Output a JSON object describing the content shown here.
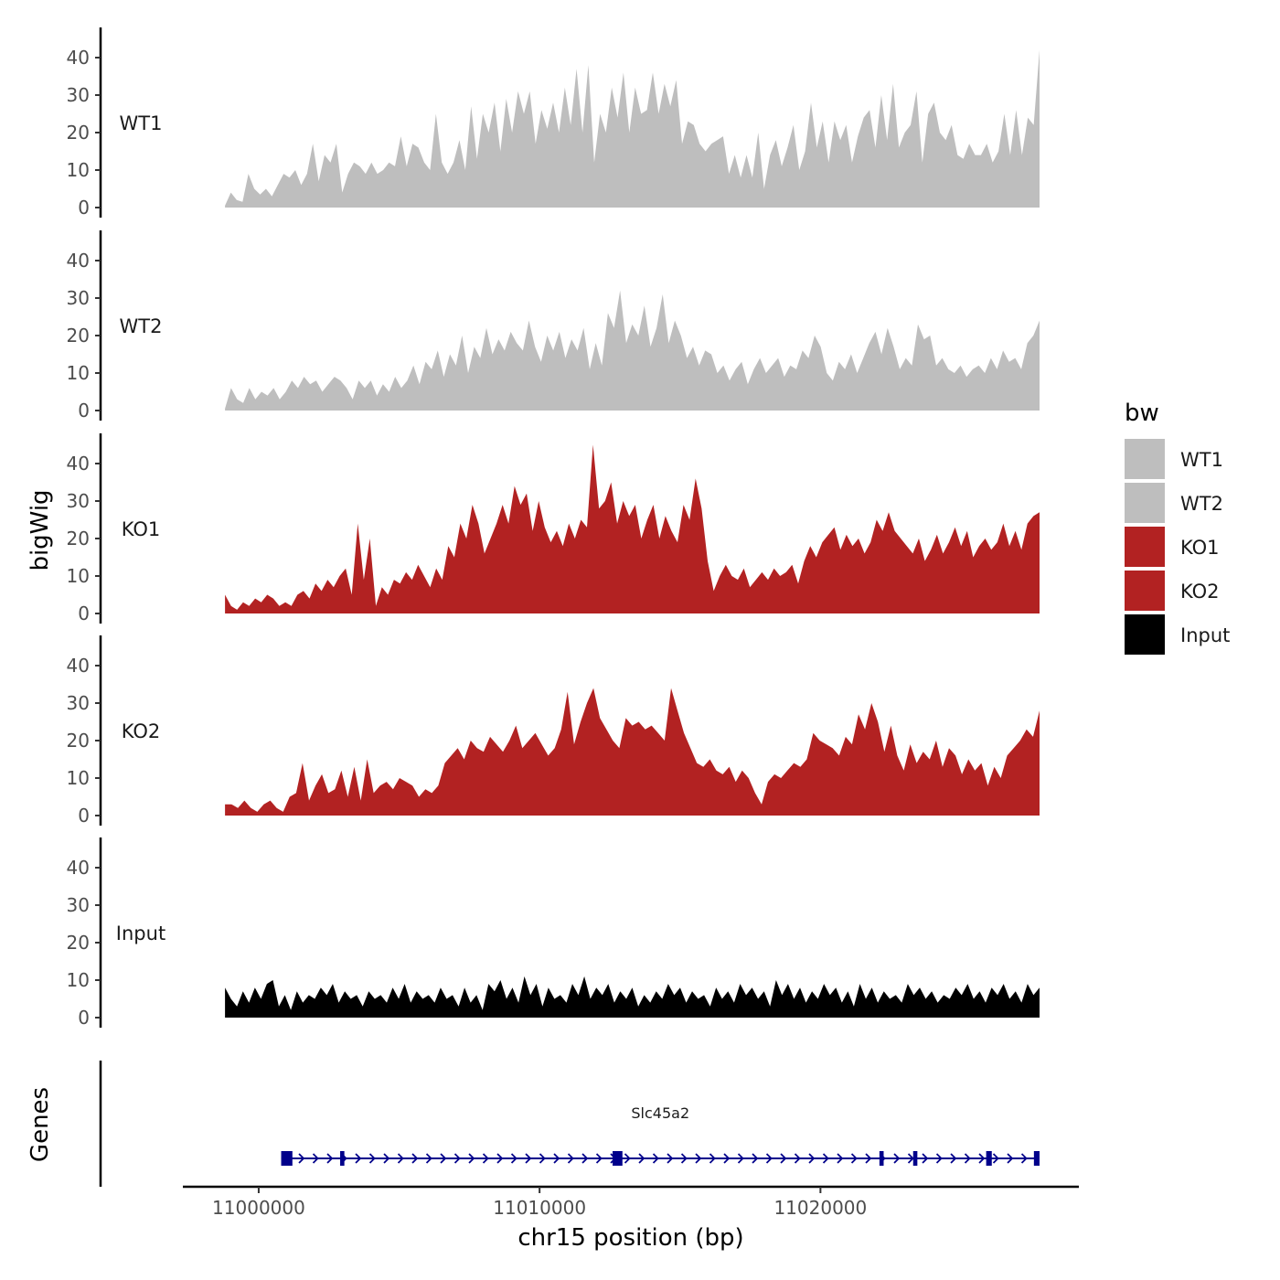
{
  "chart_data": {
    "type": "area",
    "chromosome_axis": {
      "label": "chr15 position (bp)",
      "ticks": [
        11000000,
        11010000,
        11020000
      ],
      "tick_labels": [
        "11000000",
        "11010000",
        "11020000"
      ],
      "xlim": [
        10997300,
        11029200
      ]
    },
    "y_axis": {
      "label": "bigWig",
      "ylim": [
        0,
        45
      ],
      "ticks": [
        0,
        10,
        20,
        30,
        40
      ],
      "tick_labels": [
        "0",
        "10",
        "20",
        "30",
        "40"
      ]
    },
    "legend": {
      "title": "bw",
      "position": "right",
      "entries": [
        {
          "label": "WT1",
          "color": "#bebebe"
        },
        {
          "label": "WT2",
          "color": "#bebebe"
        },
        {
          "label": "KO1",
          "color": "#b22222"
        },
        {
          "label": "KO2",
          "color": "#b22222"
        },
        {
          "label": "Input",
          "color": "#000000"
        }
      ]
    },
    "region": {
      "start": 10998800,
      "end": 11027800
    },
    "series": [
      {
        "name": "WT1",
        "color": "#bebebe",
        "values": [
          0.5,
          4,
          2,
          1.5,
          9,
          5,
          3.5,
          5,
          3,
          6,
          9,
          8,
          10,
          6,
          9,
          17,
          7,
          14,
          12,
          17,
          4,
          9,
          12,
          11,
          9,
          12,
          9,
          10,
          12,
          11,
          19,
          11,
          17,
          16,
          12,
          10,
          25,
          12,
          9,
          12,
          18,
          10,
          27,
          13,
          25,
          20,
          28,
          15,
          29,
          20,
          31,
          25,
          31,
          17,
          26,
          21,
          28,
          20,
          32,
          22,
          37,
          20,
          38,
          12,
          25,
          20,
          32,
          24,
          36,
          20,
          32,
          25,
          26,
          36,
          25,
          33,
          27,
          34,
          17,
          23,
          22,
          17,
          15,
          17,
          18,
          19,
          9,
          14,
          8,
          14,
          8,
          20,
          5,
          14,
          18,
          11,
          16,
          22,
          10,
          15,
          28,
          16,
          23,
          12,
          23,
          18,
          22,
          12,
          19,
          24,
          26,
          16,
          30,
          18,
          33,
          16,
          20,
          22,
          31,
          12,
          25,
          28,
          20,
          18,
          22,
          14,
          13,
          17,
          14,
          14,
          17,
          12,
          15,
          25,
          14,
          26,
          14,
          24,
          22,
          42
        ]
      },
      {
        "name": "WT2",
        "color": "#bebebe",
        "values": [
          0.5,
          6,
          3,
          2,
          6,
          3,
          5,
          4,
          6,
          3,
          5,
          8,
          6,
          9,
          7,
          8,
          5,
          7,
          9,
          8,
          6,
          3,
          8,
          6,
          8,
          4,
          7,
          5,
          9,
          6,
          8,
          12,
          7,
          13,
          11,
          16,
          9,
          15,
          12,
          20,
          10,
          17,
          14,
          22,
          15,
          19,
          16,
          21,
          18,
          16,
          24,
          17,
          13,
          20,
          16,
          21,
          14,
          19,
          16,
          22,
          11,
          18,
          12,
          26,
          22,
          32,
          18,
          23,
          20,
          28,
          17,
          22,
          31,
          18,
          24,
          20,
          14,
          17,
          12,
          16,
          15,
          10,
          12,
          8,
          11,
          13,
          7,
          11,
          14,
          10,
          12,
          14,
          9,
          12,
          11,
          16,
          14,
          20,
          17,
          10,
          8,
          13,
          11,
          15,
          10,
          14,
          18,
          21,
          15,
          22,
          17,
          11,
          14,
          12,
          23,
          19,
          20,
          12,
          14,
          11,
          10,
          12,
          9,
          11,
          12,
          10,
          14,
          11,
          16,
          13,
          14,
          11,
          18,
          20,
          24
        ]
      },
      {
        "name": "KO1",
        "color": "#b22222",
        "values": [
          5,
          2,
          1,
          3,
          2,
          4,
          3,
          5,
          4,
          2,
          3,
          2,
          5,
          6,
          4,
          8,
          6,
          9,
          7,
          10,
          12,
          5,
          24,
          9,
          20,
          2,
          7,
          5,
          9,
          8,
          11,
          9,
          13,
          10,
          7,
          12,
          9,
          18,
          15,
          24,
          20,
          29,
          24,
          16,
          20,
          24,
          29,
          24,
          34,
          29,
          32,
          22,
          30,
          23,
          19,
          22,
          18,
          24,
          20,
          25,
          23,
          45,
          28,
          30,
          35,
          24,
          30,
          26,
          29,
          20,
          25,
          29,
          20,
          26,
          22,
          19,
          29,
          25,
          36,
          28,
          14,
          6,
          10,
          13,
          10,
          9,
          12,
          7,
          9,
          11,
          9,
          12,
          10,
          11,
          13,
          8,
          14,
          18,
          15,
          19,
          21,
          23,
          17,
          21,
          18,
          20,
          16,
          19,
          25,
          22,
          27,
          22,
          20,
          18,
          16,
          20,
          14,
          17,
          21,
          16,
          19,
          23,
          18,
          22,
          15,
          18,
          20,
          17,
          19,
          24,
          18,
          22,
          17,
          24,
          26,
          27
        ]
      },
      {
        "name": "KO2",
        "color": "#b22222",
        "values": [
          3,
          3,
          2,
          4,
          2,
          1,
          3,
          4,
          2,
          1,
          5,
          6,
          14,
          4,
          8,
          11,
          6,
          7,
          12,
          5,
          13,
          4,
          15,
          6,
          8,
          9,
          7,
          10,
          9,
          8,
          5,
          7,
          6,
          8,
          14,
          16,
          18,
          15,
          20,
          18,
          17,
          21,
          19,
          17,
          20,
          24,
          18,
          20,
          22,
          19,
          16,
          18,
          23,
          33,
          19,
          25,
          30,
          34,
          26,
          23,
          20,
          18,
          26,
          24,
          25,
          23,
          24,
          22,
          20,
          34,
          28,
          22,
          18,
          14,
          13,
          15,
          12,
          11,
          13,
          9,
          12,
          10,
          6,
          3,
          9,
          11,
          10,
          12,
          14,
          13,
          15,
          22,
          20,
          19,
          18,
          16,
          21,
          19,
          27,
          23,
          30,
          25,
          17,
          24,
          16,
          12,
          19,
          14,
          17,
          15,
          20,
          13,
          18,
          16,
          11,
          15,
          12,
          14,
          8,
          13,
          10,
          16,
          18,
          20,
          23,
          21,
          28
        ]
      },
      {
        "name": "Input",
        "color": "#000000",
        "values": [
          8,
          5,
          3,
          7,
          4,
          8,
          5,
          9,
          10,
          3,
          6,
          2,
          7,
          4,
          6,
          5,
          8,
          6,
          9,
          4,
          7,
          5,
          6,
          3,
          7,
          5,
          6,
          4,
          8,
          5,
          9,
          4,
          7,
          5,
          6,
          4,
          8,
          5,
          6,
          3,
          8,
          4,
          6,
          2,
          9,
          7,
          10,
          5,
          8,
          4,
          11,
          6,
          9,
          3,
          8,
          5,
          6,
          4,
          9,
          6,
          11,
          5,
          8,
          6,
          9,
          4,
          7,
          5,
          8,
          3,
          6,
          4,
          7,
          5,
          9,
          6,
          8,
          4,
          7,
          5,
          6,
          3,
          8,
          5,
          7,
          4,
          9,
          6,
          8,
          5,
          7,
          3,
          10,
          6,
          9,
          5,
          8,
          4,
          7,
          5,
          9,
          6,
          8,
          4,
          7,
          3,
          9,
          5,
          8,
          4,
          7,
          5,
          6,
          4,
          9,
          6,
          8,
          5,
          7,
          4,
          6,
          5,
          8,
          6,
          9,
          5,
          7,
          4,
          8,
          6,
          9,
          5,
          7,
          4,
          9,
          6,
          8
        ]
      }
    ],
    "genes_track": {
      "label": "Genes",
      "gene_name": "Slc45a2",
      "color": "#00008b",
      "start": 11000800,
      "end": 11027800,
      "strand": "+",
      "exons": [
        [
          11000800,
          11001200
        ],
        [
          11002900,
          11003050
        ],
        [
          11012600,
          11012950
        ],
        [
          11022100,
          11022250
        ],
        [
          11023300,
          11023450
        ],
        [
          11025900,
          11026100
        ],
        [
          11027600,
          11027800
        ]
      ]
    }
  }
}
